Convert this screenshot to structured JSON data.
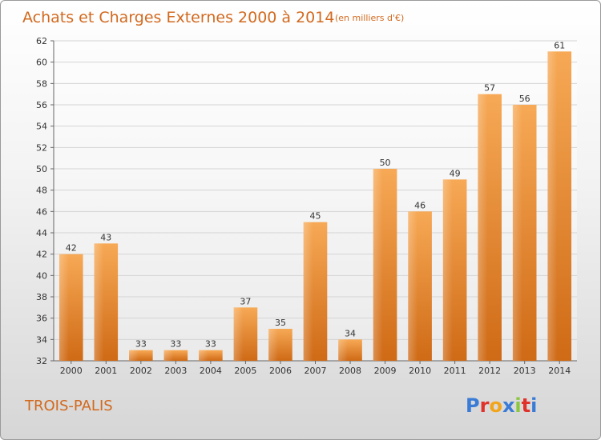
{
  "chart_data": {
    "type": "bar",
    "title": "Achats et Charges Externes 2000 à 2014",
    "subtitle": "(en milliers d'€)",
    "xlabel": "",
    "ylabel": "",
    "categories": [
      "2000",
      "2001",
      "2002",
      "2003",
      "2004",
      "2005",
      "2006",
      "2007",
      "2008",
      "2009",
      "2010",
      "2011",
      "2012",
      "2013",
      "2014"
    ],
    "values": [
      42,
      43,
      33,
      33,
      33,
      37,
      35,
      45,
      34,
      50,
      46,
      49,
      57,
      56,
      61
    ],
    "ylim": [
      32,
      62
    ],
    "yticks": [
      32,
      34,
      36,
      38,
      40,
      42,
      44,
      46,
      48,
      50,
      52,
      54,
      56,
      58,
      60,
      62
    ],
    "grid": true,
    "legend": "none",
    "bar_color": "#e8822c"
  },
  "footer": {
    "place": "TROIS-PALIS",
    "brand_letters": [
      "P",
      "r",
      "o",
      "x",
      "i",
      "t",
      "i"
    ],
    "brand_colors": [
      "#3a7bd5",
      "#e0312b",
      "#f2a51a",
      "#3a7bd5",
      "#8cc63f",
      "#e0312b",
      "#3a7bd5"
    ]
  }
}
